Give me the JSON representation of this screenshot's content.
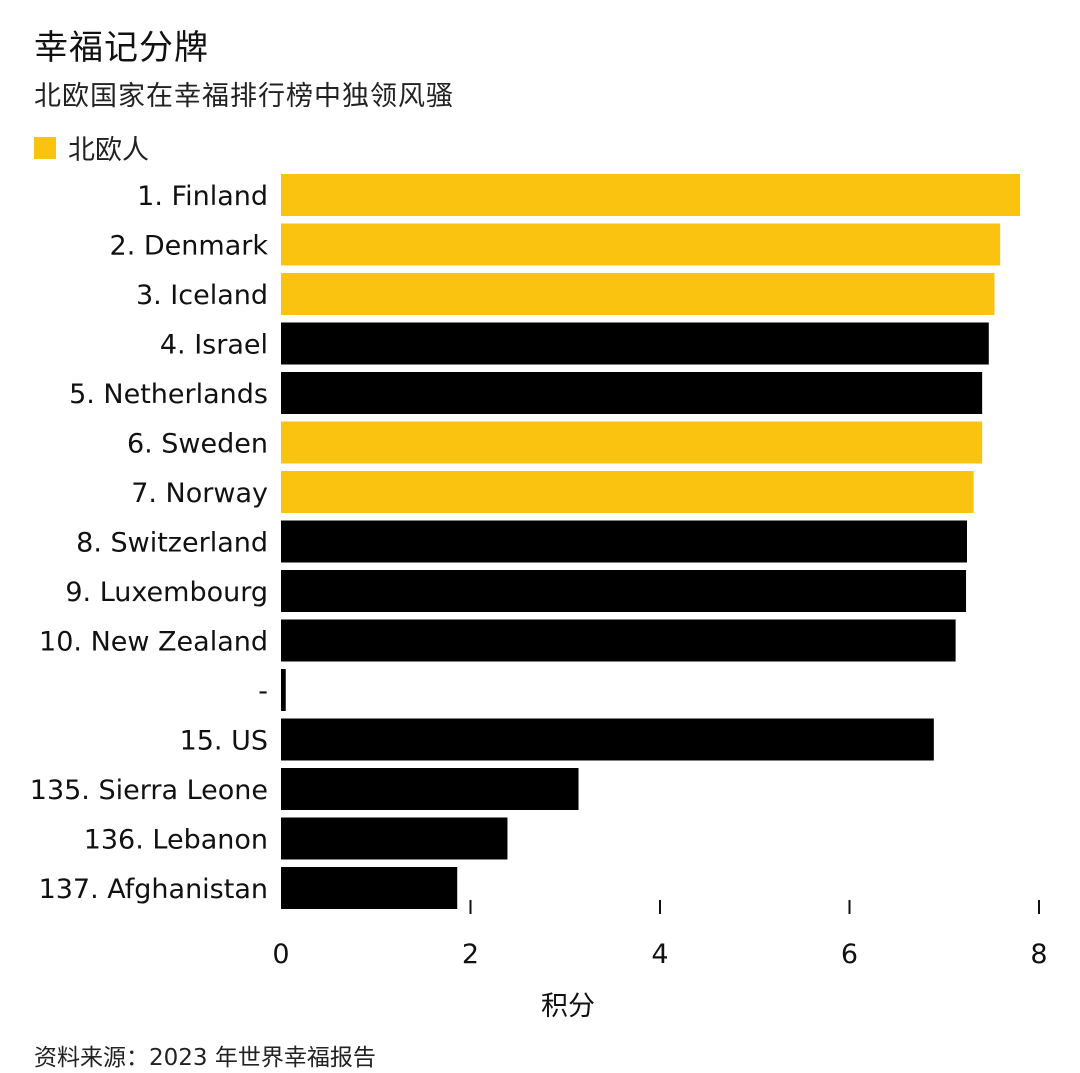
{
  "header": {
    "title": "幸福记分牌",
    "subtitle": "北欧国家在幸福排行榜中独领风骚"
  },
  "legend": {
    "label": "北欧人",
    "color": "#fac30f"
  },
  "colors": {
    "nordic": "#fac30f",
    "other": "#000000"
  },
  "chart_data": {
    "type": "bar",
    "orientation": "horizontal",
    "categories": [
      "1. Finland",
      "2. Denmark",
      "3. Iceland",
      "4. Israel",
      "5. Netherlands",
      "6. Sweden",
      "7. Norway",
      "8. Switzerland",
      "9. Luxembourg",
      "10. New Zealand",
      "-",
      "15. US",
      "135. Sierra Leone",
      "136. Lebanon",
      "137. Afghanistan"
    ],
    "values": [
      7.8,
      7.59,
      7.53,
      7.47,
      7.4,
      7.4,
      7.31,
      7.24,
      7.23,
      7.12,
      0.05,
      6.89,
      3.14,
      2.39,
      1.86
    ],
    "nordic": [
      true,
      true,
      true,
      false,
      false,
      true,
      true,
      false,
      false,
      false,
      false,
      false,
      false,
      false,
      false
    ],
    "xlabel": "积分",
    "ylabel": "",
    "xlim": [
      0,
      8
    ],
    "xticks": [
      "0",
      "2",
      "4",
      "6",
      "8"
    ],
    "legend_position": "top-left",
    "grid": false
  },
  "footer": {
    "source_label": "资料来源：",
    "source_text": "2023 年世界幸福报告"
  }
}
